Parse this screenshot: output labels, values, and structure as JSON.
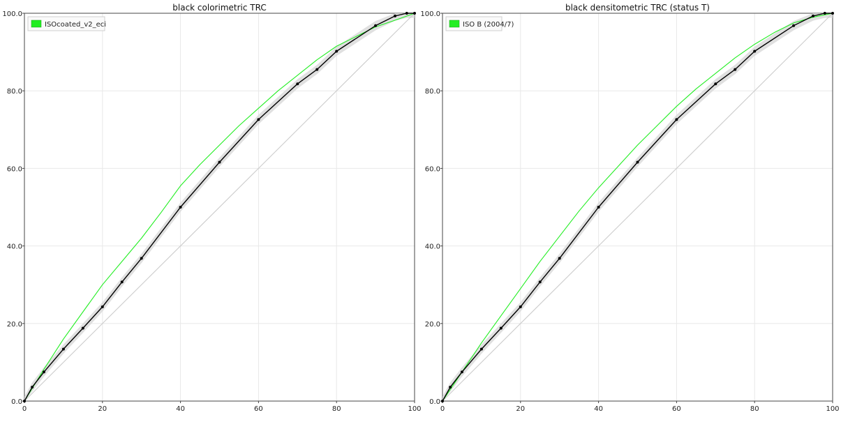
{
  "chart_data": [
    {
      "type": "line",
      "title": "black colorimetric TRC",
      "xlabel": "",
      "ylabel": "",
      "xlim": [
        0,
        100
      ],
      "ylim": [
        0,
        100
      ],
      "xticks": [
        "0",
        "20",
        "40",
        "60",
        "80",
        "100"
      ],
      "yticks": [
        "0.0",
        "20.0",
        "40.0",
        "60.0",
        "80.0",
        "100.0"
      ],
      "grid": true,
      "legend": {
        "position": "top-left",
        "label": "ISOcoated_v2_eci",
        "color": "#22ee22"
      },
      "series": [
        {
          "name": "ISOcoated_v2_eci",
          "color": "#22ee22",
          "x": [
            0,
            5,
            10,
            15,
            20,
            25,
            30,
            35,
            40,
            45,
            50,
            55,
            60,
            65,
            70,
            75,
            80,
            85,
            90,
            95,
            100
          ],
          "y": [
            0,
            8.2,
            16,
            23,
            30,
            36,
            42,
            48.6,
            55.5,
            61,
            66,
            71,
            75.5,
            80,
            84,
            88,
            91.5,
            94,
            96.5,
            98.2,
            100
          ]
        },
        {
          "name": "",
          "color": "#000000",
          "markers": true,
          "x": [
            0,
            2,
            5,
            10,
            15,
            20,
            25,
            30,
            40,
            50,
            60,
            70,
            75,
            80,
            90,
            95,
            98,
            100
          ],
          "y": [
            0,
            3.6,
            7.5,
            13.4,
            18.8,
            24.3,
            30.7,
            36.8,
            50,
            61.6,
            72.6,
            81.8,
            85.5,
            90.2,
            96.8,
            99.3,
            100,
            100
          ]
        },
        {
          "name": "",
          "color": "#cccccc",
          "x": [
            0,
            100
          ],
          "y": [
            0,
            100
          ]
        }
      ]
    },
    {
      "type": "line",
      "title": "black densitometric TRC (status T)",
      "xlabel": "",
      "ylabel": "",
      "xlim": [
        0,
        100
      ],
      "ylim": [
        0,
        100
      ],
      "xticks": [
        "0",
        "20",
        "40",
        "60",
        "80",
        "100"
      ],
      "yticks": [
        "0.0",
        "20.0",
        "40.0",
        "60.0",
        "80.0",
        "100.0"
      ],
      "grid": true,
      "legend": {
        "position": "top-left",
        "label": "ISO B (2004/7)",
        "color": "#22ee22"
      },
      "series": [
        {
          "name": "ISO B (2004/7)",
          "color": "#22ee22",
          "x": [
            0,
            5,
            10,
            15,
            20,
            25,
            30,
            35,
            40,
            45,
            50,
            55,
            60,
            65,
            70,
            75,
            80,
            85,
            90,
            95,
            100
          ],
          "y": [
            0,
            7.5,
            15,
            22,
            29,
            36,
            42.5,
            49,
            55,
            60.5,
            66,
            71,
            76,
            80.5,
            84.5,
            88.5,
            92,
            95,
            97.5,
            99,
            100
          ]
        },
        {
          "name": "",
          "color": "#000000",
          "markers": true,
          "x": [
            0,
            2,
            5,
            10,
            15,
            20,
            25,
            30,
            40,
            50,
            60,
            70,
            75,
            80,
            90,
            95,
            98,
            100
          ],
          "y": [
            0,
            3.6,
            7.5,
            13.4,
            18.8,
            24.3,
            30.7,
            36.8,
            50,
            61.6,
            72.6,
            81.8,
            85.5,
            90.2,
            96.8,
            99.3,
            100,
            100
          ]
        },
        {
          "name": "",
          "color": "#cccccc",
          "x": [
            0,
            100
          ],
          "y": [
            0,
            100
          ]
        }
      ]
    }
  ]
}
